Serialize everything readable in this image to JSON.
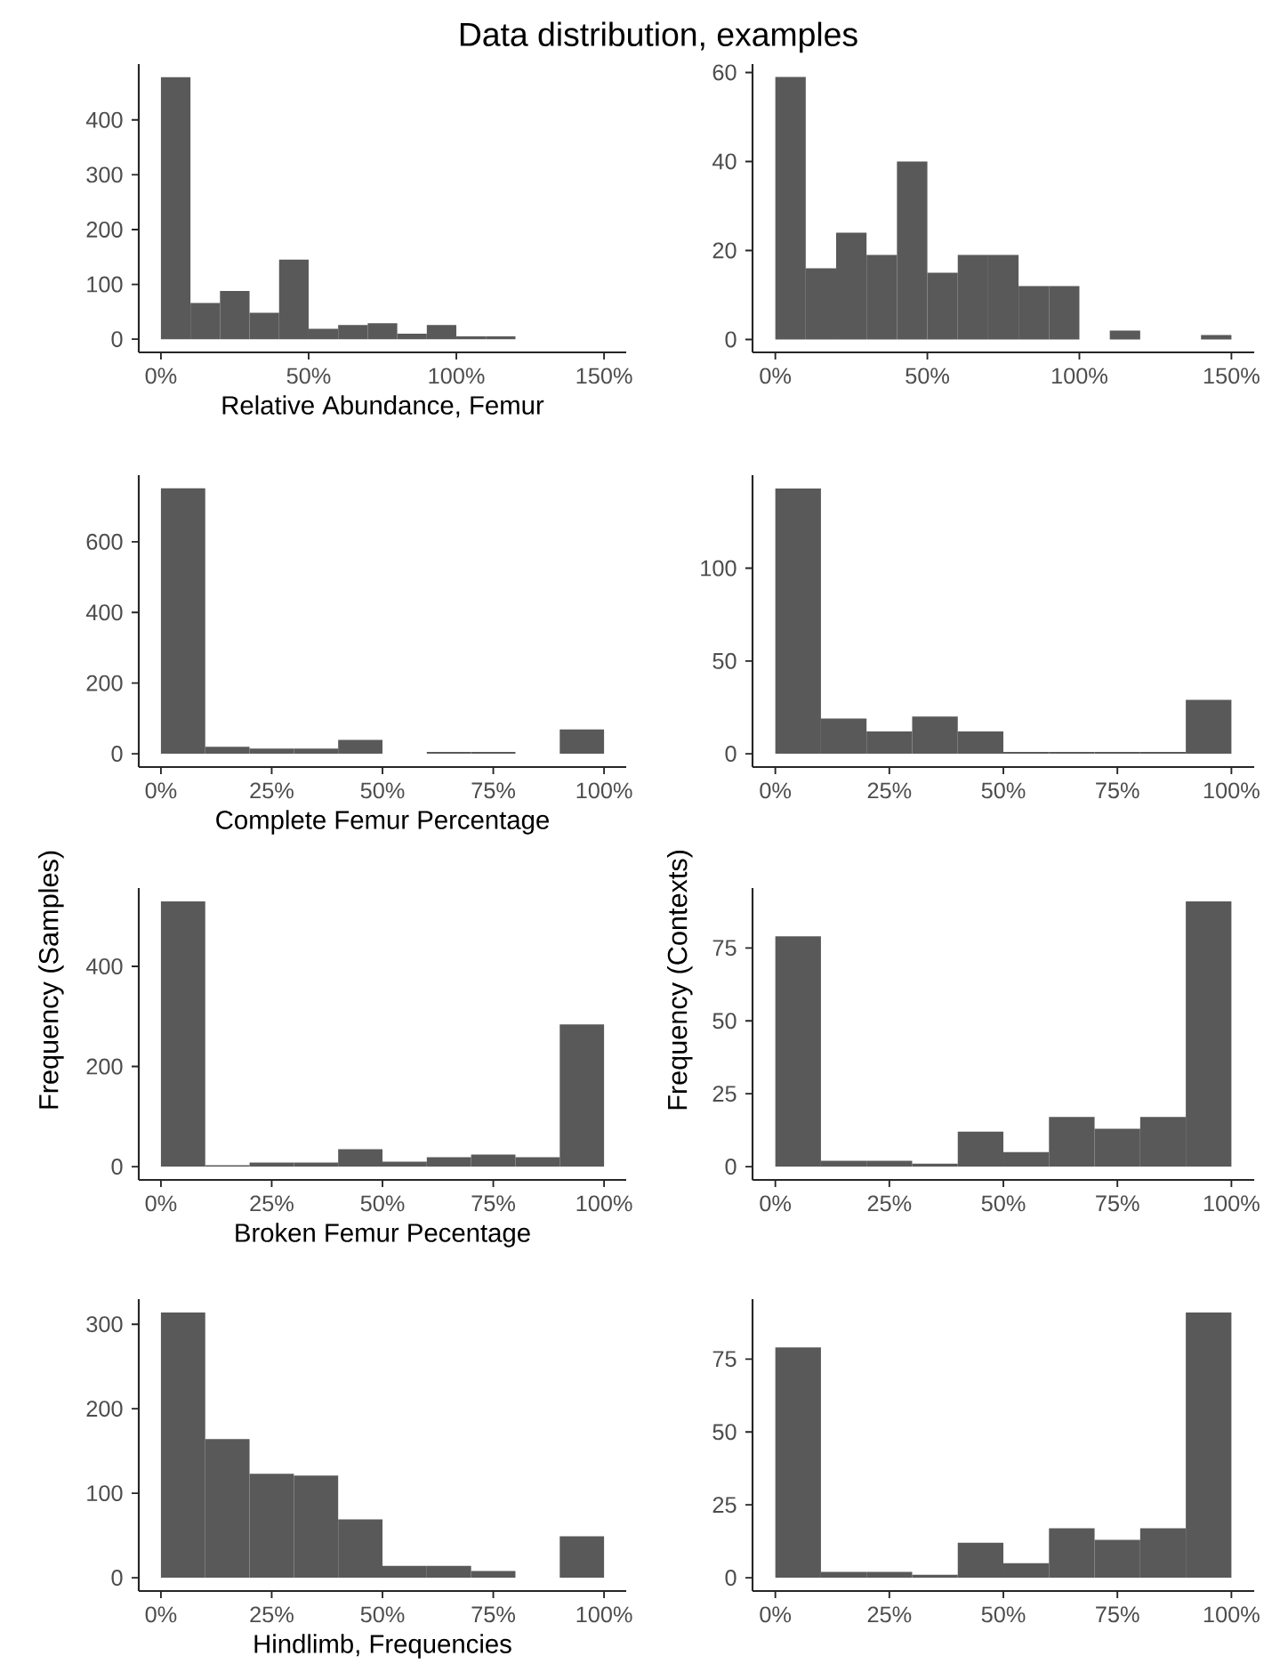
{
  "chart_data": [
    {
      "type": "histogram",
      "title": "Data distribution, examples",
      "xlabel": "Relative Abundance, Femur",
      "color": "#595959",
      "bins": [
        0,
        10,
        20,
        30,
        40,
        50,
        60,
        70,
        80,
        90,
        100,
        110,
        120
      ],
      "values": [
        478,
        66,
        88,
        48,
        145,
        19,
        26,
        29,
        10,
        26,
        5,
        5
      ],
      "xlim": [
        -7.5,
        157.5
      ],
      "ylim": [
        -24,
        502
      ],
      "xticks": [
        {
          "value": 0,
          "label": "0%"
        },
        {
          "value": 50,
          "label": "50%"
        },
        {
          "value": 100,
          "label": "100%"
        },
        {
          "value": 150,
          "label": "150%"
        }
      ],
      "yticks": [
        0,
        100,
        200,
        300,
        400
      ]
    },
    {
      "type": "histogram",
      "color": "#595959",
      "bins": [
        0,
        10,
        20,
        30,
        40,
        50,
        60,
        70,
        80,
        90,
        100,
        110,
        120,
        130,
        140,
        150
      ],
      "values": [
        59,
        16,
        24,
        19,
        40,
        15,
        19,
        19,
        12,
        12,
        0,
        2,
        0,
        0,
        1
      ],
      "xlim": [
        -7.5,
        157.5
      ],
      "ylim": [
        -2.9,
        61.9
      ],
      "xticks": [
        {
          "value": 0,
          "label": "0%"
        },
        {
          "value": 50,
          "label": "50%"
        },
        {
          "value": 100,
          "label": "100%"
        },
        {
          "value": 150,
          "label": "150%"
        }
      ],
      "yticks": [
        0,
        20,
        40,
        60
      ]
    },
    {
      "type": "histogram",
      "xlabel": "Complete Femur Percentage",
      "ylabel": "Frequency (Samples)",
      "color": "#595959",
      "bins": [
        0,
        10,
        20,
        30,
        40,
        50,
        60,
        70,
        80,
        90,
        100
      ],
      "values": [
        751,
        20,
        15,
        15,
        39,
        0,
        5,
        5,
        0,
        69
      ],
      "xlim": [
        -5,
        105
      ],
      "ylim": [
        -37.5,
        788.5
      ],
      "xticks": [
        {
          "value": 0,
          "label": "0%"
        },
        {
          "value": 25,
          "label": "25%"
        },
        {
          "value": 50,
          "label": "50%"
        },
        {
          "value": 75,
          "label": "75%"
        },
        {
          "value": 100,
          "label": "100%"
        }
      ],
      "yticks": [
        0,
        200,
        400,
        600
      ]
    },
    {
      "type": "histogram",
      "ylabel": "Frequency (Contexts)",
      "color": "#595959",
      "bins": [
        0,
        10,
        20,
        30,
        40,
        50,
        60,
        70,
        80,
        90,
        100
      ],
      "values": [
        143,
        19,
        12,
        20,
        12,
        1,
        1,
        1,
        1,
        29
      ],
      "xlim": [
        -5,
        105
      ],
      "ylim": [
        -7.15,
        150.15
      ],
      "xticks": [
        {
          "value": 0,
          "label": "0%"
        },
        {
          "value": 25,
          "label": "25%"
        },
        {
          "value": 50,
          "label": "50%"
        },
        {
          "value": 75,
          "label": "75%"
        },
        {
          "value": 100,
          "label": "100%"
        }
      ],
      "yticks": [
        0,
        50,
        100
      ]
    },
    {
      "type": "histogram",
      "xlabel": "Broken Femur Pecentage",
      "color": "#595959",
      "bins": [
        0,
        10,
        20,
        30,
        40,
        50,
        60,
        70,
        80,
        90,
        100
      ],
      "values": [
        530,
        3,
        8,
        8,
        35,
        10,
        19,
        24,
        19,
        284
      ],
      "xlim": [
        -5,
        105
      ],
      "ylim": [
        -26.5,
        556.5
      ],
      "xticks": [
        {
          "value": 0,
          "label": "0%"
        },
        {
          "value": 25,
          "label": "25%"
        },
        {
          "value": 50,
          "label": "50%"
        },
        {
          "value": 75,
          "label": "75%"
        },
        {
          "value": 100,
          "label": "100%"
        }
      ],
      "yticks": [
        0,
        200,
        400
      ]
    },
    {
      "type": "histogram",
      "color": "#595959",
      "bins": [
        0,
        10,
        20,
        30,
        40,
        50,
        60,
        70,
        80,
        90,
        100
      ],
      "values": [
        79,
        2,
        2,
        1,
        12,
        5,
        17,
        13,
        17,
        91
      ],
      "xlim": [
        -5,
        105
      ],
      "ylim": [
        -4.55,
        95.55
      ],
      "xticks": [
        {
          "value": 0,
          "label": "0%"
        },
        {
          "value": 25,
          "label": "25%"
        },
        {
          "value": 50,
          "label": "50%"
        },
        {
          "value": 75,
          "label": "75%"
        },
        {
          "value": 100,
          "label": "100%"
        }
      ],
      "yticks": [
        0,
        25,
        50,
        75
      ]
    },
    {
      "type": "histogram",
      "xlabel": "Hindlimb, Frequencies",
      "color": "#595959",
      "bins": [
        0,
        10,
        20,
        30,
        40,
        50,
        60,
        70,
        80,
        90,
        100
      ],
      "values": [
        314,
        164,
        123,
        121,
        69,
        14,
        14,
        8,
        0,
        49
      ],
      "xlim": [
        -5,
        105
      ],
      "ylim": [
        -15.7,
        329.7
      ],
      "xticks": [
        {
          "value": 0,
          "label": "0%"
        },
        {
          "value": 25,
          "label": "25%"
        },
        {
          "value": 50,
          "label": "50%"
        },
        {
          "value": 75,
          "label": "75%"
        },
        {
          "value": 100,
          "label": "100%"
        }
      ],
      "yticks": [
        0,
        100,
        200,
        300
      ]
    },
    {
      "type": "histogram",
      "color": "#595959",
      "bins": [
        0,
        10,
        20,
        30,
        40,
        50,
        60,
        70,
        80,
        90,
        100
      ],
      "values": [
        79,
        2,
        2,
        1,
        12,
        5,
        17,
        13,
        17,
        91
      ],
      "xlim": [
        -5,
        105
      ],
      "ylim": [
        -4.55,
        95.55
      ],
      "xticks": [
        {
          "value": 0,
          "label": "0%"
        },
        {
          "value": 25,
          "label": "25%"
        },
        {
          "value": 50,
          "label": "50%"
        },
        {
          "value": 75,
          "label": "75%"
        },
        {
          "value": 100,
          "label": "100%"
        }
      ],
      "yticks": [
        0,
        25,
        50,
        75
      ]
    }
  ]
}
